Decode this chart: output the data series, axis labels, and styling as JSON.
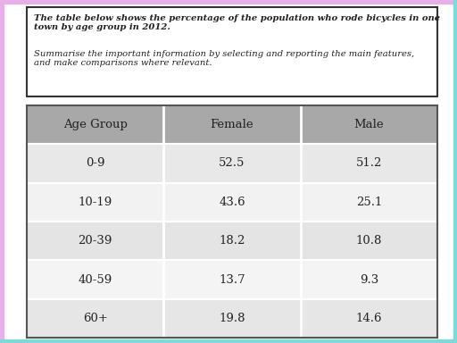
{
  "title_bold": "The table below shows the percentage of the population who rode bicycles in one town by age group in 2012.",
  "subtitle": "Summarise the important information by selecting and reporting the main features, and make comparisons where relevant.",
  "headers": [
    "Age Group",
    "Female",
    "Male"
  ],
  "rows": [
    [
      "0-9",
      "52.5",
      "51.2"
    ],
    [
      "10-19",
      "43.6",
      "25.1"
    ],
    [
      "20-39",
      "18.2",
      "10.8"
    ],
    [
      "40-59",
      "13.7",
      "9.3"
    ],
    [
      "60+",
      "19.8",
      "14.6"
    ]
  ],
  "header_bg": "#a8a8a8",
  "row_bgs": [
    "#e8e8e8",
    "#f2f2f2",
    "#e4e4e4",
    "#f4f4f4",
    "#e6e6e6"
  ],
  "text_color": "#222222",
  "border_color": "#555555",
  "page_bg": "#ffffff",
  "title_box_bg": "#ffffff",
  "title_box_border": "#333333",
  "left_border_color": "#e8b0e8",
  "right_border_color": "#80d8d8",
  "col_sep_color": "#ffffff"
}
